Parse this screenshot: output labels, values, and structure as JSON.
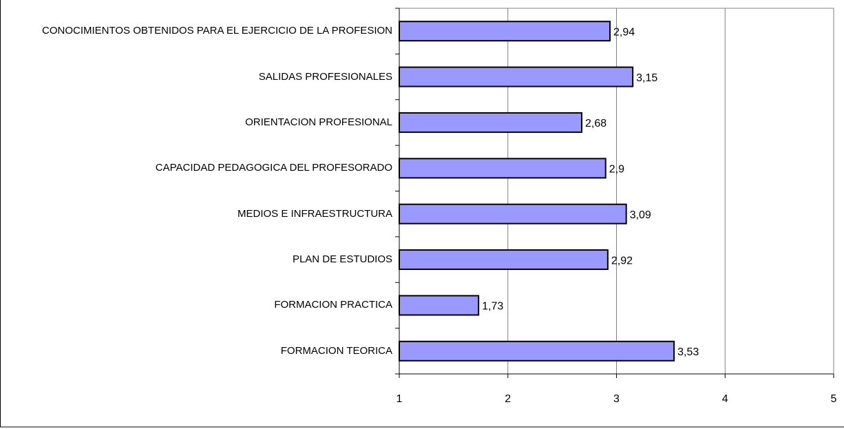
{
  "chart_data": {
    "type": "bar",
    "orientation": "horizontal",
    "categories": [
      "CONOCIMIENTOS OBTENIDOS PARA EL EJERCICIO DE LA PROFESION",
      "SALIDAS PROFESIONALES",
      "ORIENTACION PROFESIONAL",
      "CAPACIDAD PEDAGOGICA DEL PROFESORADO",
      "MEDIOS E INFRAESTRUCTURA",
      "PLAN DE ESTUDIOS",
      "FORMACION PRACTICA",
      "FORMACION TEORICA"
    ],
    "values": [
      2.94,
      3.15,
      2.68,
      2.9,
      3.09,
      2.92,
      1.73,
      3.53
    ],
    "value_labels": [
      "2,94",
      "3,15",
      "2,68",
      "2,9",
      "3,09",
      "2,92",
      "1,73",
      "3,53"
    ],
    "color": "#9999ff",
    "xlim": [
      1,
      5
    ],
    "xticks": [
      1,
      2,
      3,
      4,
      5
    ],
    "grid": true
  }
}
